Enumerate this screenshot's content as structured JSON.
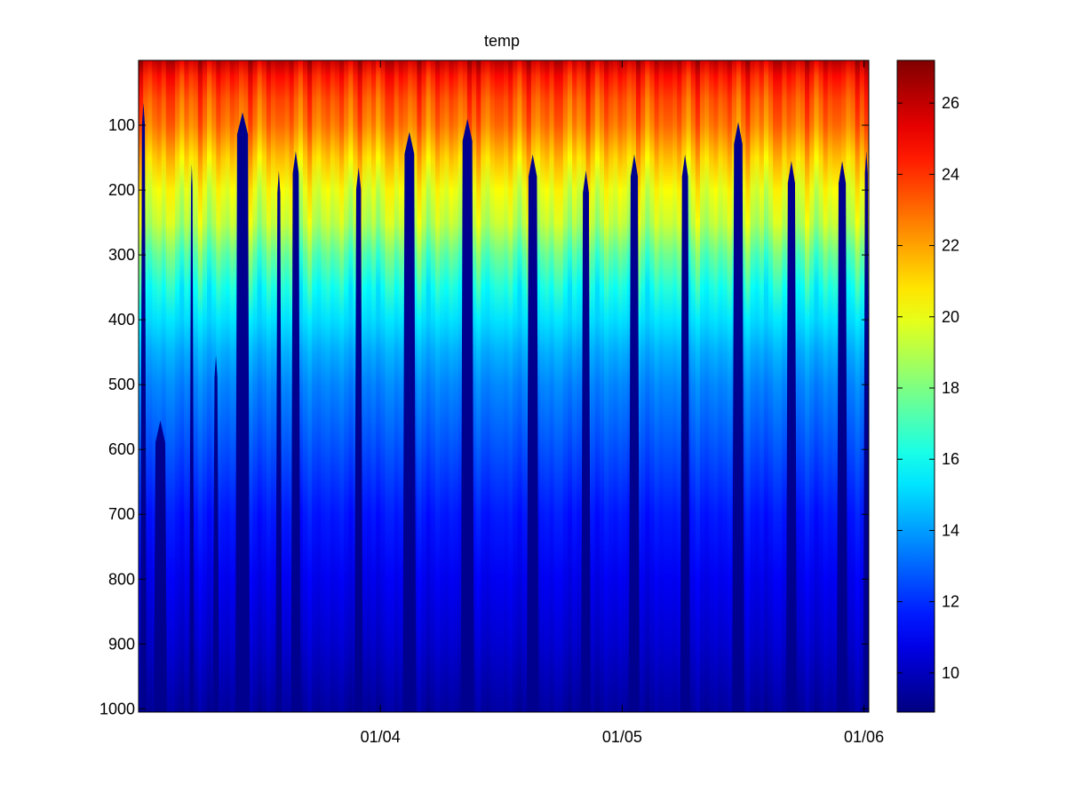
{
  "chart_data": {
    "type": "heatmap",
    "title": "temp",
    "xlabel": "",
    "ylabel": "",
    "x_tick_labels": [
      "01/04",
      "01/05",
      "01/06"
    ],
    "x_tick_positions_days": [
      1.0,
      2.0,
      3.0
    ],
    "x_range_days": [
      0.0,
      3.02
    ],
    "y_ticks": [
      100,
      200,
      300,
      400,
      500,
      600,
      700,
      800,
      900,
      1000
    ],
    "y_tick_labels": [
      "100",
      "200",
      "300",
      "400",
      "500",
      "600",
      "700",
      "800",
      "900",
      "1000"
    ],
    "y_range": [
      0,
      1005
    ],
    "y_reversed": true,
    "colorbar": {
      "colormap": "jet",
      "range": [
        8.9,
        27.2
      ],
      "ticks": [
        10,
        12,
        14,
        16,
        18,
        20,
        22,
        24,
        26
      ],
      "tick_labels": [
        "10",
        "12",
        "14",
        "16",
        "18",
        "20",
        "22",
        "24",
        "26"
      ]
    },
    "temperature_profile": {
      "depth": [
        0,
        25,
        60,
        100,
        150,
        200,
        250,
        300,
        350,
        400,
        450,
        500,
        600,
        700,
        800,
        900,
        1000
      ],
      "temp": [
        26.0,
        24.5,
        23.5,
        22.8,
        21.3,
        20.0,
        19.2,
        17.5,
        16.2,
        15.2,
        14.3,
        13.6,
        12.6,
        11.6,
        10.9,
        10.3,
        9.5
      ]
    },
    "gaps": [
      {
        "x": 0.02,
        "top": 65,
        "width": 0.012
      },
      {
        "x": 0.09,
        "top": 555,
        "width": 0.04
      },
      {
        "x": 0.22,
        "top": 160,
        "width": 0.006
      },
      {
        "x": 0.32,
        "top": 455,
        "width": 0.012
      },
      {
        "x": 0.43,
        "top": 80,
        "width": 0.045
      },
      {
        "x": 0.58,
        "top": 170,
        "width": 0.012
      },
      {
        "x": 0.65,
        "top": 140,
        "width": 0.025
      },
      {
        "x": 0.91,
        "top": 165,
        "width": 0.02
      },
      {
        "x": 1.12,
        "top": 110,
        "width": 0.04
      },
      {
        "x": 1.36,
        "top": 90,
        "width": 0.04
      },
      {
        "x": 1.63,
        "top": 145,
        "width": 0.035
      },
      {
        "x": 1.85,
        "top": 170,
        "width": 0.025
      },
      {
        "x": 2.05,
        "top": 145,
        "width": 0.03
      },
      {
        "x": 2.26,
        "top": 145,
        "width": 0.025
      },
      {
        "x": 2.48,
        "top": 95,
        "width": 0.035
      },
      {
        "x": 2.7,
        "top": 155,
        "width": 0.03
      },
      {
        "x": 2.91,
        "top": 155,
        "width": 0.03
      },
      {
        "x": 3.01,
        "top": 140,
        "width": 0.012
      }
    ]
  }
}
